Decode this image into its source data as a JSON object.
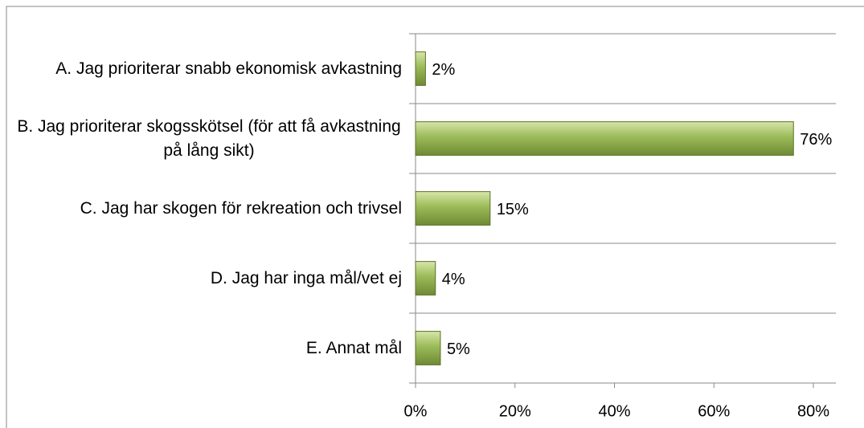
{
  "chart_data": {
    "type": "bar",
    "orientation": "horizontal",
    "categories": [
      "A. Jag prioriterar snabb ekonomisk avkastning",
      "B. Jag prioriterar skogsskötsel (för att få avkastning på lång sikt)",
      "C. Jag har skogen för rekreation och trivsel",
      "D. Jag har inga mål/vet ej",
      "E. Annat mål"
    ],
    "values": [
      2,
      76,
      15,
      4,
      5
    ],
    "value_labels": [
      "2%",
      "76%",
      "15%",
      "4%",
      "5%"
    ],
    "color": "#9bbb59",
    "xlim": [
      0,
      80
    ],
    "xticks": [
      {
        "value": 0,
        "label": "0%"
      },
      {
        "value": 20,
        "label": "20%"
      },
      {
        "value": 40,
        "label": "40%"
      },
      {
        "value": 60,
        "label": "60%"
      },
      {
        "value": 80,
        "label": "80%"
      }
    ]
  }
}
